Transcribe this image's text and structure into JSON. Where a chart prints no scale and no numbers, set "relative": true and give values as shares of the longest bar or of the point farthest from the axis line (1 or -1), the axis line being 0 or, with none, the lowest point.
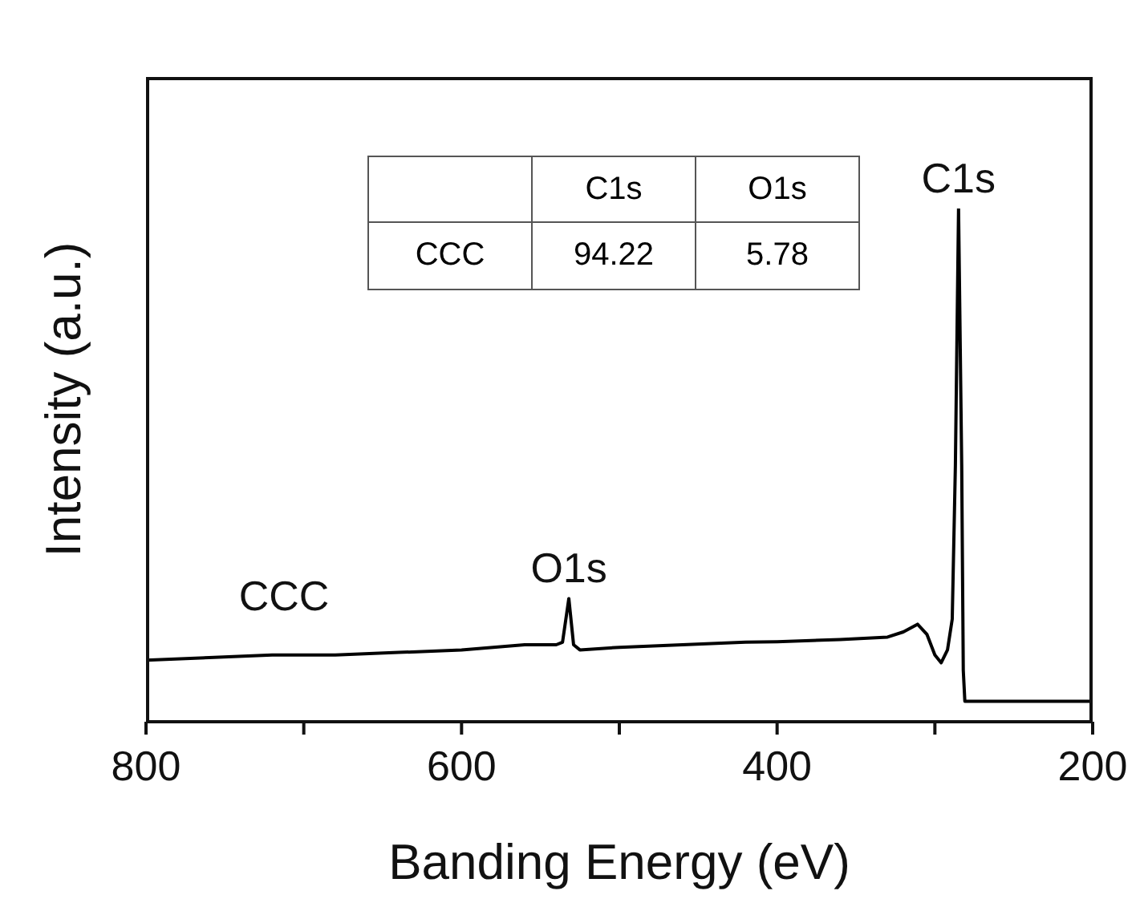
{
  "chart_data": {
    "type": "line",
    "xlabel": "Banding Energy (eV)",
    "ylabel": "Intensity (a.u.)",
    "relative": true,
    "x": [
      800,
      760,
      720,
      680,
      640,
      600,
      560,
      540,
      536,
      532,
      529,
      525,
      500,
      460,
      420,
      400,
      360,
      330,
      320,
      311,
      305,
      300,
      296,
      292,
      289,
      287,
      285,
      283,
      282,
      281,
      270,
      240,
      200
    ],
    "series": [
      {
        "color": "#000000",
        "values": [
          0.12,
          0.125,
          0.13,
          0.13,
          0.135,
          0.14,
          0.15,
          0.15,
          0.155,
          0.24,
          0.15,
          0.14,
          0.145,
          0.15,
          0.155,
          0.156,
          0.16,
          0.165,
          0.175,
          0.19,
          0.17,
          0.13,
          0.115,
          0.14,
          0.2,
          0.5,
          1,
          0.5,
          0.1,
          0.04,
          0.04,
          0.04,
          0.04
        ]
      }
    ],
    "xlim": [
      800,
      200
    ],
    "xticks": [
      800,
      {
        "value": 700,
        "label": null
      },
      600,
      {
        "value": 500,
        "label": null
      },
      400,
      {
        "value": 300,
        "label": null
      },
      200
    ],
    "annotations": [
      {
        "text": "C1s",
        "x": 285,
        "y": 1
      },
      {
        "text": "O1s",
        "x": 532,
        "y": 0.24
      },
      "CCC",
      "C1s",
      "O1s",
      "CCC",
      "94.22",
      "5.78"
    ]
  }
}
